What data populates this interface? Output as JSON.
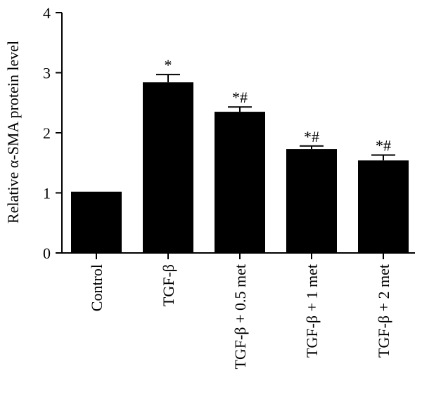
{
  "chart_data": {
    "type": "bar",
    "title": "",
    "xlabel": "",
    "ylabel": "Relative α-SMA protein level",
    "ylim": [
      0,
      4
    ],
    "yticks": [
      0,
      1,
      2,
      3,
      4
    ],
    "grid": false,
    "legend": "none",
    "bar_color": "#000000",
    "categories": [
      "Control",
      "TGF-β",
      "TGF-β + 0.5 met",
      "TGF-β + 1 met",
      "TGF-β + 2 met"
    ],
    "values": [
      1.02,
      2.84,
      2.35,
      1.73,
      1.54
    ],
    "error": [
      0.0,
      0.13,
      0.08,
      0.05,
      0.09
    ],
    "annotations": [
      "",
      "*",
      "*#",
      "*#",
      "*#"
    ]
  }
}
